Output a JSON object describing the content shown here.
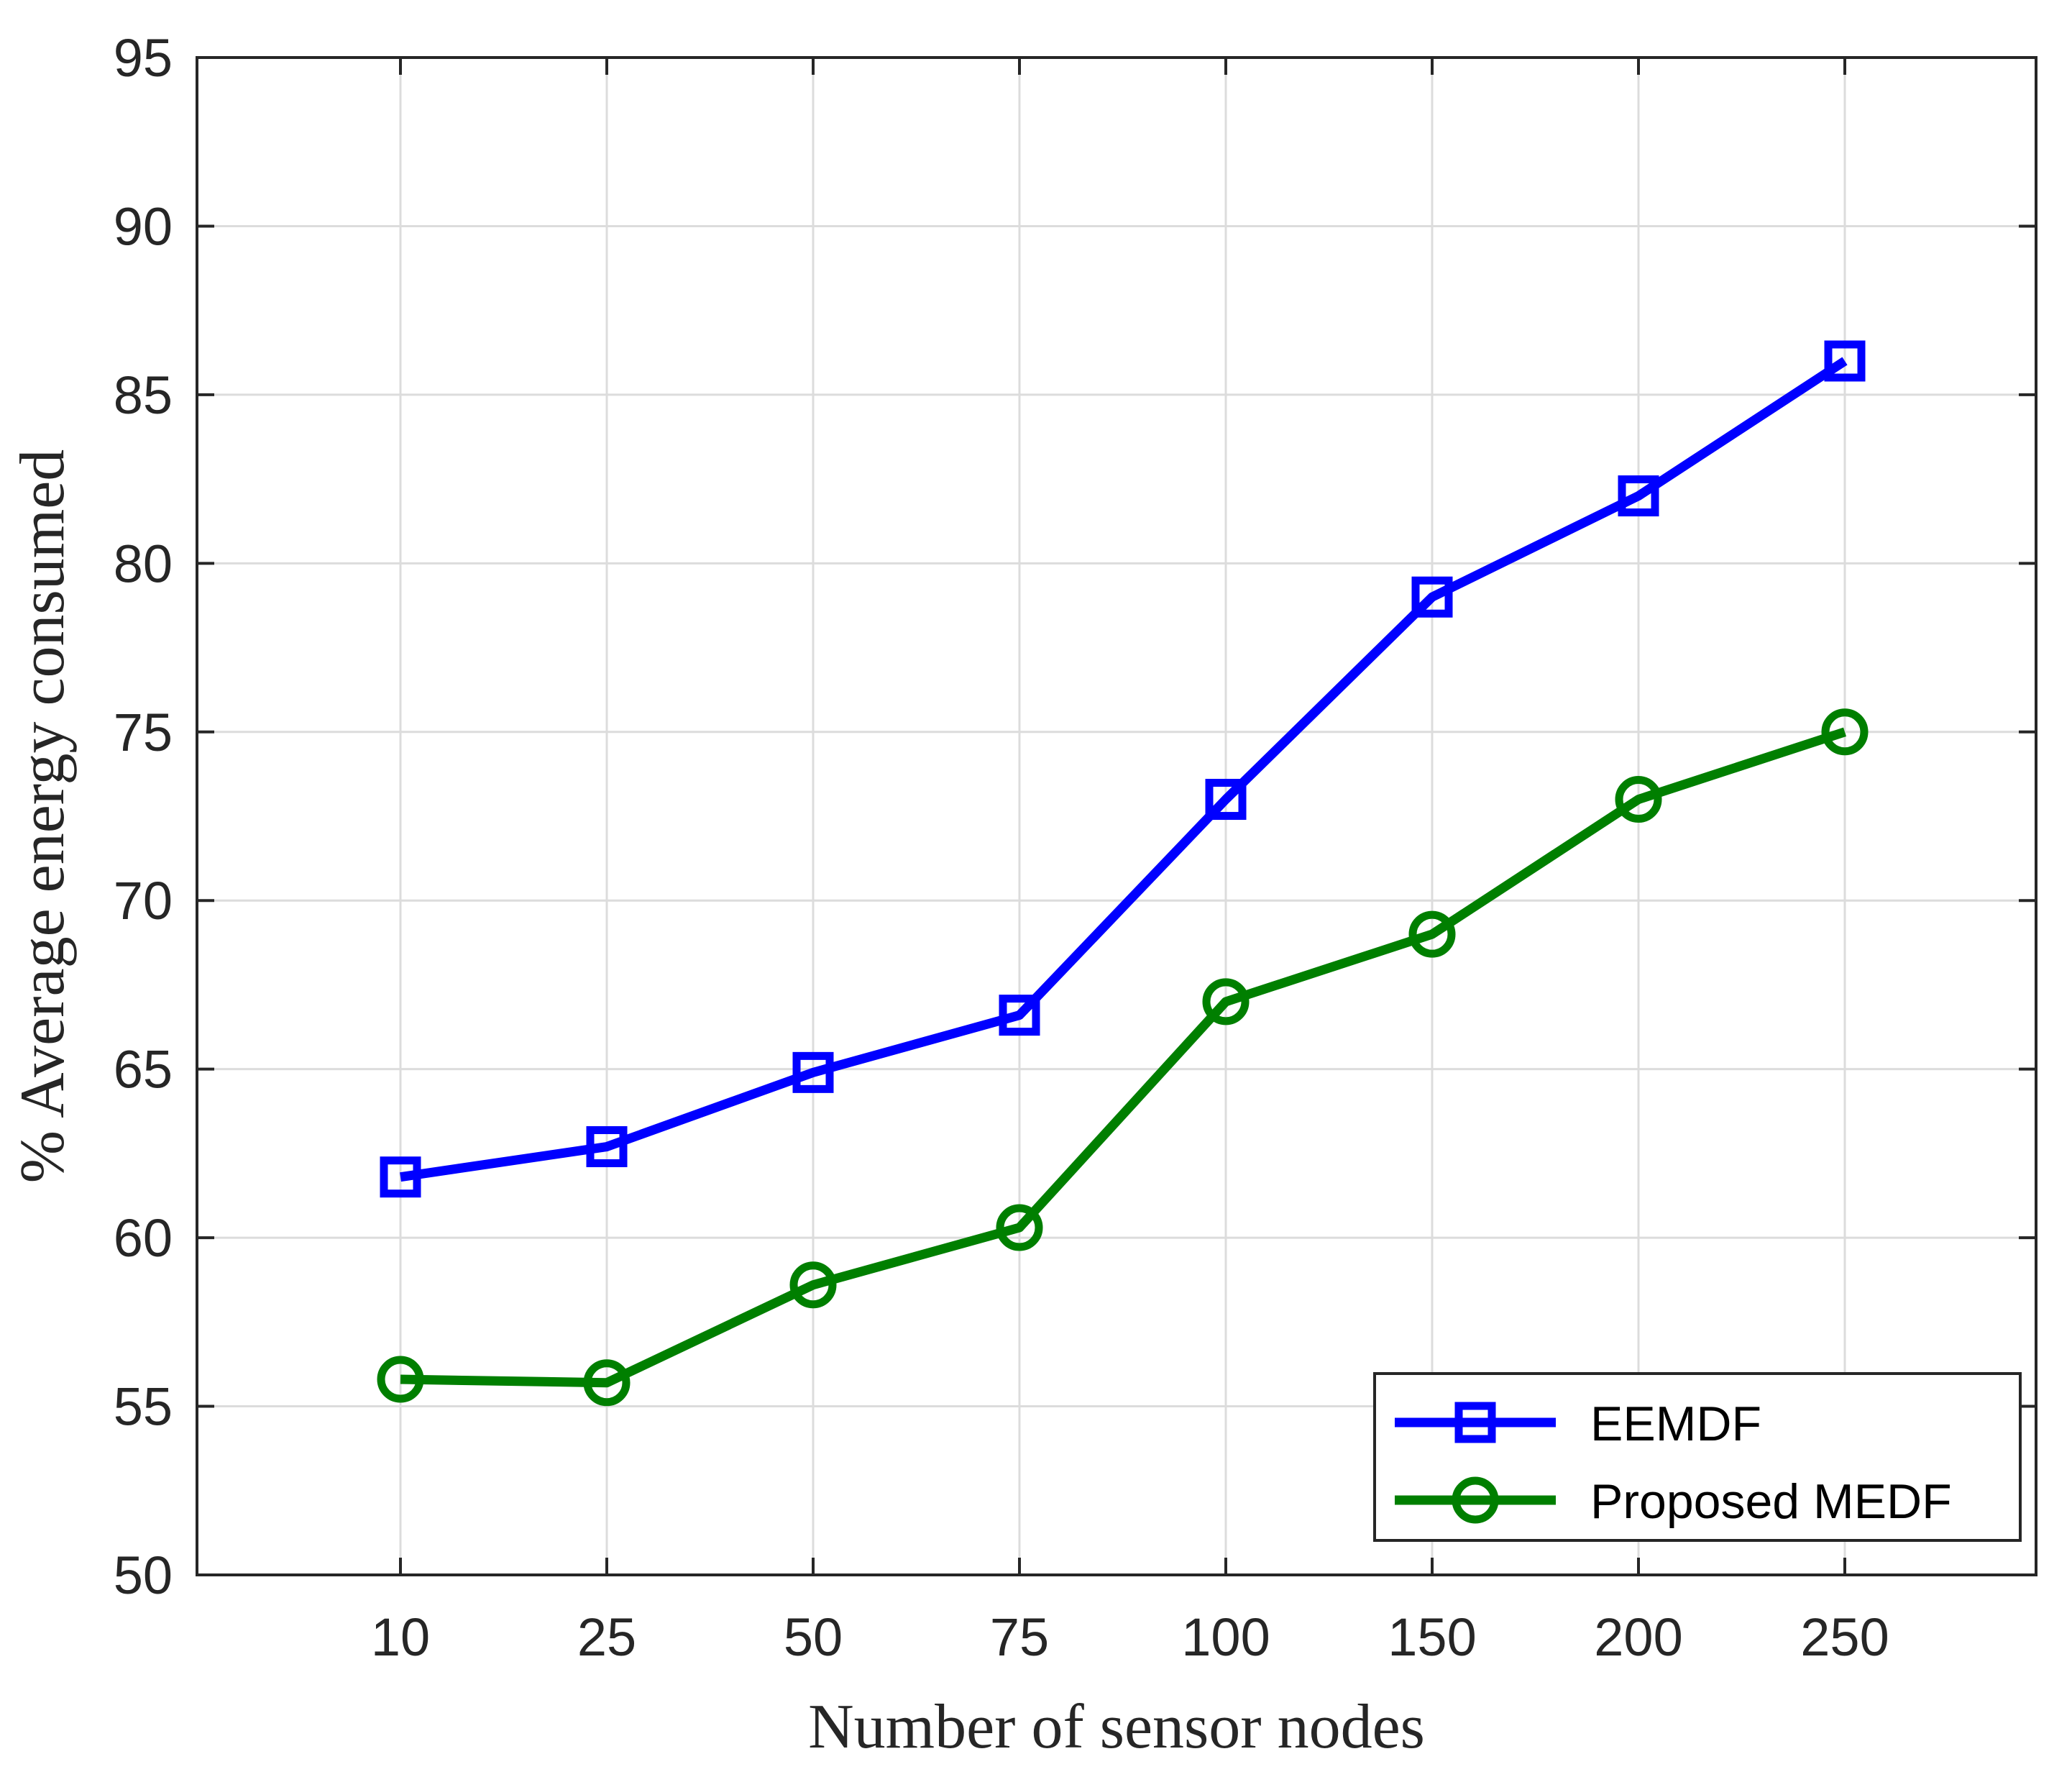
{
  "chart_data": {
    "type": "line",
    "title": "",
    "xlabel": "Number of sensor nodes",
    "ylabel": "% Average energy consumed",
    "categories": [
      "10",
      "25",
      "50",
      "75",
      "100",
      "150",
      "200",
      "250"
    ],
    "ylim": [
      50,
      95
    ],
    "yticks": [
      50,
      55,
      60,
      65,
      70,
      75,
      80,
      85,
      90,
      95
    ],
    "grid": true,
    "legend_position": "bottom-right",
    "series": [
      {
        "name": "EEMDF",
        "color": "#0000ff",
        "marker": "square",
        "values": [
          61.8,
          62.7,
          64.9,
          66.6,
          73.0,
          79.0,
          82.0,
          86.0
        ]
      },
      {
        "name": "Proposed MEDF",
        "color": "#007f00",
        "marker": "circle",
        "values": [
          55.8,
          55.7,
          58.6,
          60.3,
          67.0,
          69.0,
          73.0,
          75.0
        ]
      }
    ]
  }
}
